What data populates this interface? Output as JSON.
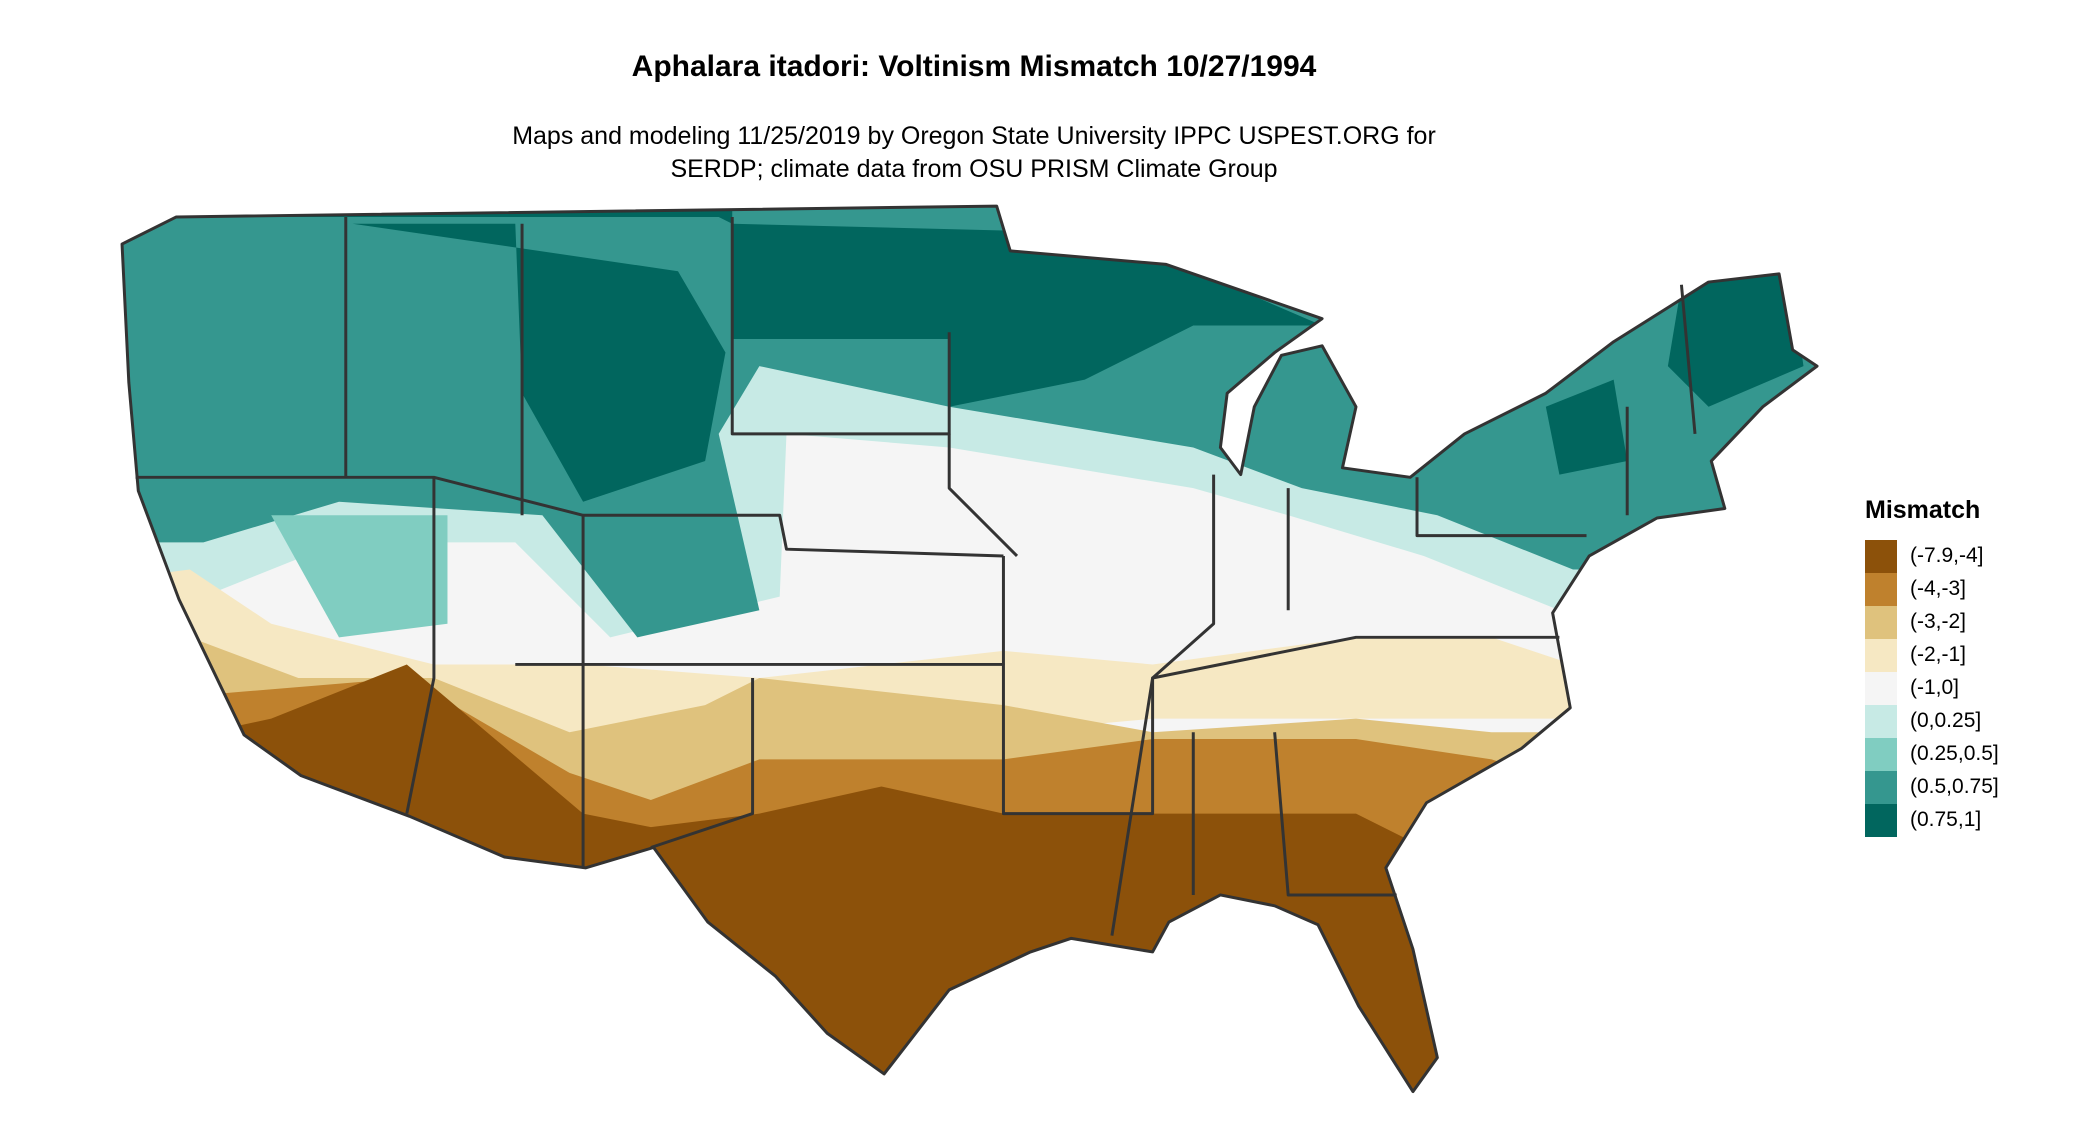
{
  "header": {
    "title": "Aphalara itadori: Voltinism Mismatch 10/27/1994",
    "subtitle": [
      "Maps and modeling 11/25/2019 by Oregon State University IPPC USPEST.ORG for",
      "SERDP; climate data from OSU PRISM Climate Group"
    ]
  },
  "legend": {
    "title": "Mismatch",
    "items": [
      {
        "label": "(-7.9,-4]",
        "color": "#8c510a"
      },
      {
        "label": "(-4,-3]",
        "color": "#bf812d"
      },
      {
        "label": "(-3,-2]",
        "color": "#dfc27d"
      },
      {
        "label": "(-2,-1]",
        "color": "#f6e8c3"
      },
      {
        "label": "(-1,0]",
        "color": "#f5f5f5"
      },
      {
        "label": "(0,0.25]",
        "color": "#c7eae5"
      },
      {
        "label": "(0.25,0.5]",
        "color": "#80cdc1"
      },
      {
        "label": "(0.5,0.75]",
        "color": "#35978f"
      },
      {
        "label": "(0.75,1]",
        "color": "#01665e"
      }
    ]
  }
}
